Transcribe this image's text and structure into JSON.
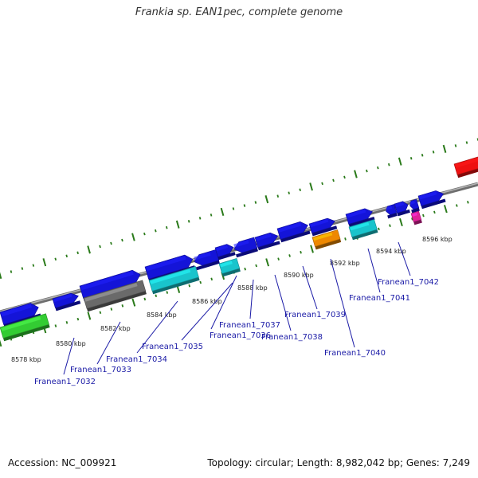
{
  "title": "Frankia sp. EAN1pec, complete genome",
  "footer": {
    "accession": "Accession: NC_009921",
    "topology": "Topology: circular; Length: 8,982,042 bp; Genes: 7,249"
  },
  "colors": {
    "backbone": "#8a8a8a",
    "ticks": "#2a7a1a",
    "gene_blue": "#1414d8",
    "gene_gray": "#6a6a6a",
    "gene_cyan": "#19c4cc",
    "gene_green": "#33cc33",
    "gene_orange": "#ee8800",
    "gene_magenta": "#e0209a",
    "gene_red": "#ee1111",
    "label": "#1a1aa6"
  },
  "scale_labels": [
    "8578 kbp",
    "8580 kbp",
    "8582 kbp",
    "8584 kbp",
    "8586 kbp",
    "8588 kbp",
    "8590 kbp",
    "8592 kbp",
    "8594 kbp",
    "8596 kbp"
  ],
  "gene_labels": [
    "Franean1_7032",
    "Franean1_7033",
    "Franean1_7034",
    "Franean1_7035",
    "Franean1_7036",
    "Franean1_7037",
    "Franean1_7038",
    "Franean1_7039",
    "Franean1_7040",
    "Franean1_7041",
    "Franean1_7042"
  ]
}
